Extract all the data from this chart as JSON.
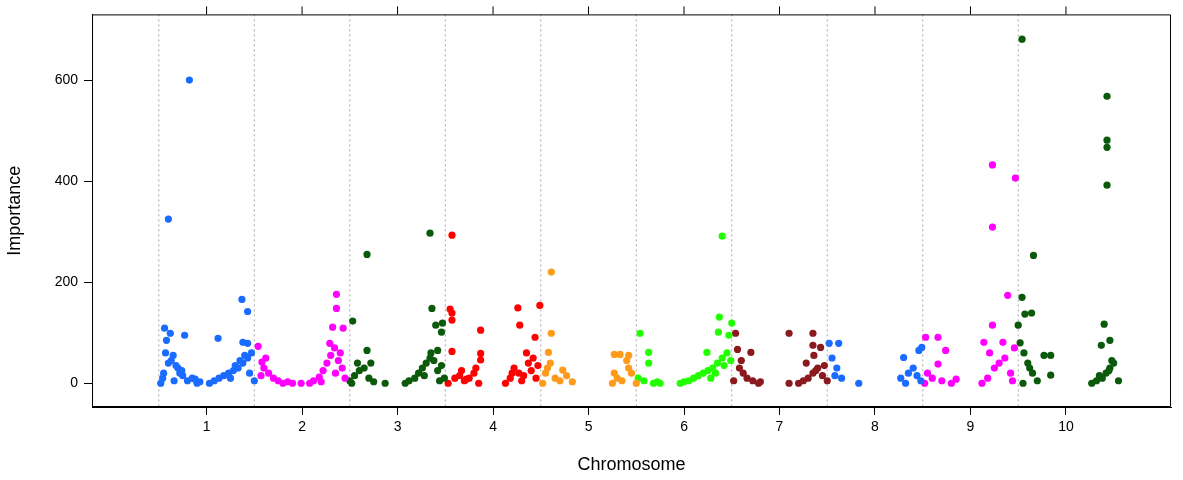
{
  "chart_data": {
    "type": "scatter",
    "xlabel": "Chromosome",
    "ylabel": "Importance",
    "marker": "circle",
    "grid": false,
    "legend": false,
    "xlim": [
      -0.2,
      11.1
    ],
    "xticks": [
      1,
      2,
      3,
      4,
      5,
      6,
      7,
      8,
      9,
      10
    ],
    "ylim": [
      -47,
      730
    ],
    "yticks": [
      0,
      200,
      400,
      600
    ],
    "ref_lines": [
      {
        "axis": "x",
        "value": 0.5,
        "color": "#a6a6a6",
        "line_style": "dotted"
      },
      {
        "axis": "x",
        "value": 1.5,
        "color": "#a6a6a6",
        "line_style": "dotted"
      },
      {
        "axis": "x",
        "value": 2.5,
        "color": "#a6a6a6",
        "line_style": "dotted"
      },
      {
        "axis": "x",
        "value": 3.5,
        "color": "#a6a6a6",
        "line_style": "dotted"
      },
      {
        "axis": "x",
        "value": 4.5,
        "color": "#a6a6a6",
        "line_style": "dotted"
      },
      {
        "axis": "x",
        "value": 5.5,
        "color": "#a6a6a6",
        "line_style": "dotted"
      },
      {
        "axis": "x",
        "value": 6.5,
        "color": "#a6a6a6",
        "line_style": "dotted"
      },
      {
        "axis": "x",
        "value": 7.5,
        "color": "#a6a6a6",
        "line_style": "dotted"
      },
      {
        "axis": "x",
        "value": 8.5,
        "color": "#a6a6a6",
        "line_style": "dotted"
      },
      {
        "axis": "x",
        "value": 9.5,
        "color": "#a6a6a6",
        "line_style": "dotted"
      }
    ],
    "series": [
      {
        "color": "#1a6bff",
        "x": [
          0.82,
          0.6,
          0.56,
          0.62,
          0.58,
          0.77,
          0.52,
          0.55,
          0.6,
          0.65,
          0.7,
          0.75,
          0.8,
          0.85,
          0.9,
          0.93,
          0.57,
          0.63,
          0.68,
          0.72,
          0.54,
          0.66,
          0.74,
          0.88,
          1.12,
          1.37,
          1.43,
          1.38,
          1.43,
          1.03,
          1.08,
          1.13,
          1.18,
          1.23,
          1.28,
          1.33,
          1.38,
          1.43,
          1.47,
          1.5,
          1.3,
          1.35,
          1.4,
          1.45,
          1.25,
          7.52,
          7.62,
          7.55,
          7.6,
          7.58,
          7.65,
          7.83,
          8.3,
          8.46,
          8.49,
          8.27,
          8.35,
          8.4,
          8.44,
          8.48,
          8.32
        ],
        "values": [
          600,
          325,
          109,
          99,
          85,
          95,
          0,
          20,
          40,
          55,
          30,
          15,
          5,
          10,
          0,
          3,
          60,
          45,
          35,
          20,
          10,
          5,
          25,
          8,
          89,
          166,
          142,
          81,
          79,
          0,
          5,
          10,
          15,
          20,
          25,
          30,
          40,
          50,
          60,
          5,
          35,
          45,
          55,
          20,
          10,
          79,
          79,
          50,
          30,
          15,
          10,
          0,
          51,
          65,
          71,
          10,
          20,
          30,
          15,
          5,
          0
        ]
      },
      {
        "color": "#ff00ff",
        "x": [
          1.54,
          1.58,
          1.6,
          1.65,
          1.7,
          1.75,
          1.8,
          1.85,
          1.9,
          1.99,
          1.62,
          1.57,
          2.36,
          2.36,
          2.32,
          2.43,
          2.29,
          2.08,
          2.12,
          2.18,
          2.22,
          2.26,
          2.3,
          2.34,
          2.38,
          2.42,
          2.45,
          2.2,
          2.35,
          2.4,
          8.53,
          8.66,
          8.74,
          8.66,
          8.55,
          8.6,
          8.7,
          8.8,
          8.85,
          8.52,
          9.23,
          9.47,
          9.23,
          9.39,
          9.23,
          9.14,
          9.34,
          9.12,
          9.18,
          9.25,
          9.3,
          9.36,
          9.42,
          9.46,
          9.2,
          9.44
        ],
        "values": [
          73,
          42,
          30,
          20,
          10,
          5,
          0,
          3,
          0,
          0,
          50,
          15,
          176,
          148,
          111,
          109,
          79,
          0,
          5,
          12,
          25,
          40,
          55,
          70,
          45,
          30,
          10,
          3,
          20,
          60,
          91,
          91,
          65,
          38,
          20,
          10,
          5,
          0,
          8,
          0,
          432,
          406,
          309,
          174,
          115,
          81,
          81,
          0,
          10,
          30,
          40,
          50,
          20,
          70,
          60,
          5
        ]
      },
      {
        "color": "#0b5a0b",
        "x": [
          2.68,
          2.53,
          2.68,
          2.72,
          2.87,
          2.5,
          2.55,
          2.6,
          2.65,
          2.7,
          2.75,
          2.58,
          2.52,
          3.34,
          3.36,
          3.4,
          3.47,
          3.46,
          3.42,
          3.08,
          3.12,
          3.18,
          3.22,
          3.26,
          3.3,
          3.34,
          3.38,
          3.42,
          3.46,
          3.49,
          3.35,
          3.28,
          3.44,
          9.54,
          9.66,
          9.54,
          9.57,
          9.64,
          9.5,
          9.77,
          9.84,
          9.84,
          9.52,
          9.56,
          9.6,
          9.65,
          9.7,
          9.55,
          9.62,
          10.43,
          10.43,
          10.43,
          10.43,
          10.4,
          10.37,
          10.46,
          10.27,
          10.32,
          10.38,
          10.42,
          10.46,
          10.5,
          10.55,
          10.35,
          10.45,
          10.48
        ],
        "values": [
          255,
          123,
          65,
          40,
          0,
          5,
          15,
          25,
          30,
          10,
          3,
          40,
          0,
          297,
          148,
          115,
          119,
          101,
          65,
          0,
          5,
          10,
          20,
          30,
          40,
          50,
          45,
          25,
          35,
          10,
          60,
          15,
          5,
          681,
          253,
          170,
          137,
          139,
          115,
          55,
          55,
          16,
          80,
          60,
          40,
          20,
          5,
          0,
          30,
          568,
          481,
          467,
          392,
          117,
          75,
          85,
          0,
          5,
          10,
          20,
          30,
          40,
          5,
          15,
          25,
          45
        ]
      },
      {
        "color": "#ff0000",
        "x": [
          3.57,
          3.55,
          3.57,
          3.57,
          3.57,
          3.87,
          3.87,
          3.87,
          3.53,
          3.6,
          3.65,
          3.7,
          3.75,
          3.8,
          3.85,
          3.67,
          3.72,
          3.82,
          4.26,
          4.28,
          4.49,
          4.44,
          4.13,
          4.18,
          4.22,
          4.27,
          4.32,
          4.37,
          4.42,
          4.47,
          4.35,
          4.4,
          4.3,
          4.2,
          4.45
        ],
        "values": [
          293,
          147,
          139,
          125,
          63,
          105,
          59,
          46,
          0,
          10,
          15,
          5,
          10,
          20,
          0,
          25,
          8,
          30,
          149,
          115,
          154,
          91,
          0,
          10,
          30,
          20,
          15,
          40,
          50,
          35,
          60,
          25,
          5,
          20,
          10
        ]
      },
      {
        "color": "#ff9a1a",
        "x": [
          4.61,
          4.61,
          4.58,
          4.73,
          4.52,
          4.55,
          4.6,
          4.65,
          4.7,
          4.77,
          4.83,
          4.57,
          5.27,
          5.33,
          5.42,
          5.27,
          5.42,
          5.25,
          5.3,
          5.35,
          5.45,
          5.5,
          5.4
        ],
        "values": [
          220,
          99,
          61,
          26,
          0,
          20,
          40,
          10,
          5,
          15,
          3,
          30,
          57,
          57,
          55,
          20,
          30,
          0,
          10,
          5,
          20,
          0,
          45
        ]
      },
      {
        "color": "#22ff00",
        "x": [
          5.54,
          5.63,
          5.63,
          5.52,
          5.58,
          5.68,
          5.72,
          5.75,
          6.4,
          6.37,
          6.5,
          6.36,
          6.47,
          6.24,
          5.96,
          6.0,
          6.05,
          6.1,
          6.15,
          6.2,
          6.25,
          6.3,
          6.35,
          6.4,
          6.45,
          6.49,
          6.42,
          6.33,
          6.28
        ],
        "values": [
          99,
          61,
          40,
          10,
          5,
          0,
          3,
          0,
          291,
          131,
          119,
          101,
          95,
          61,
          0,
          3,
          5,
          10,
          15,
          20,
          25,
          30,
          40,
          50,
          60,
          45,
          35,
          20,
          10
        ]
      },
      {
        "color": "#8b1a1f",
        "x": [
          6.54,
          6.56,
          6.7,
          6.52,
          6.58,
          6.62,
          6.66,
          6.72,
          6.78,
          6.8,
          6.6,
          7.1,
          7.35,
          7.35,
          7.43,
          7.1,
          7.36,
          7.2,
          7.25,
          7.3,
          7.35,
          7.4,
          7.45,
          7.5,
          7.28,
          7.38,
          7.47
        ],
        "values": [
          99,
          67,
          61,
          5,
          30,
          20,
          10,
          5,
          0,
          3,
          45,
          99,
          99,
          75,
          71,
          0,
          55,
          0,
          5,
          10,
          20,
          30,
          15,
          5,
          40,
          25,
          35
        ]
      }
    ]
  }
}
